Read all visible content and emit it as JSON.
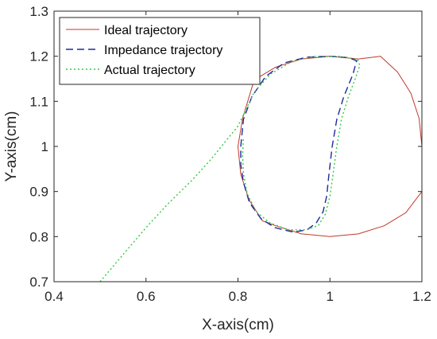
{
  "chart_data": {
    "type": "line",
    "xlabel": "X-axis(cm)",
    "ylabel": "Y-axis(cm)",
    "xlim": [
      0.4,
      1.2
    ],
    "ylim": [
      0.7,
      1.3
    ],
    "xticks": [
      "0.4",
      "0.6",
      "0.8",
      "1",
      "1.2"
    ],
    "yticks": [
      "0.7",
      "0.8",
      "0.9",
      "1",
      "1.1",
      "1.2",
      "1.3"
    ],
    "grid": false,
    "legend_position": "top-left",
    "series": [
      {
        "name": "Ideal trajectory",
        "style": "solid",
        "color": "#c0392b",
        "points": [
          [
            1.2,
            1.0
          ],
          [
            1.194,
            1.062
          ],
          [
            1.176,
            1.118
          ],
          [
            1.147,
            1.165
          ],
          [
            1.11,
            1.2
          ],
          [
            1.062,
            1.194
          ],
          [
            1.0,
            1.2
          ],
          [
            0.938,
            1.194
          ],
          [
            0.882,
            1.176
          ],
          [
            0.835,
            1.147
          ],
          [
            0.81,
            1.062
          ],
          [
            0.8,
            1.0
          ],
          [
            0.806,
            0.938
          ],
          [
            0.824,
            0.882
          ],
          [
            0.853,
            0.835
          ],
          [
            0.882,
            0.824
          ],
          [
            0.938,
            0.806
          ],
          [
            1.0,
            0.8
          ],
          [
            1.062,
            0.806
          ],
          [
            1.118,
            0.824
          ],
          [
            1.165,
            0.853
          ],
          [
            1.2,
            0.9
          ],
          [
            1.2,
            1.0
          ]
        ]
      },
      {
        "name": "Impedance trajectory",
        "style": "dashed",
        "color": "#1f2a9c",
        "points": [
          [
            0.806,
            1.0
          ],
          [
            0.812,
            1.06
          ],
          [
            0.83,
            1.11
          ],
          [
            0.86,
            1.155
          ],
          [
            0.9,
            1.185
          ],
          [
            0.95,
            1.198
          ],
          [
            1.0,
            1.2
          ],
          [
            1.04,
            1.197
          ],
          [
            1.058,
            1.19
          ],
          [
            1.05,
            1.16
          ],
          [
            1.03,
            1.11
          ],
          [
            1.015,
            1.06
          ],
          [
            1.005,
            1.0
          ],
          [
            0.998,
            0.94
          ],
          [
            0.993,
            0.89
          ],
          [
            0.985,
            0.855
          ],
          [
            0.97,
            0.83
          ],
          [
            0.95,
            0.815
          ],
          [
            0.92,
            0.81
          ],
          [
            0.88,
            0.82
          ],
          [
            0.85,
            0.84
          ],
          [
            0.825,
            0.875
          ],
          [
            0.812,
            0.92
          ],
          [
            0.806,
            0.96
          ],
          [
            0.806,
            1.0
          ]
        ]
      },
      {
        "name": "Actual trajectory",
        "style": "dotted",
        "color": "#2ecc40",
        "points": [
          [
            0.5,
            0.7
          ],
          [
            0.55,
            0.76
          ],
          [
            0.6,
            0.82
          ],
          [
            0.65,
            0.875
          ],
          [
            0.7,
            0.925
          ],
          [
            0.74,
            0.97
          ],
          [
            0.78,
            1.02
          ],
          [
            0.8,
            1.045
          ],
          [
            0.812,
            1.07
          ],
          [
            0.835,
            1.12
          ],
          [
            0.87,
            1.16
          ],
          [
            0.92,
            1.19
          ],
          [
            0.97,
            1.2
          ],
          [
            1.02,
            1.2
          ],
          [
            1.06,
            1.193
          ],
          [
            1.065,
            1.18
          ],
          [
            1.055,
            1.15
          ],
          [
            1.04,
            1.11
          ],
          [
            1.025,
            1.06
          ],
          [
            1.015,
            1.0
          ],
          [
            1.007,
            0.94
          ],
          [
            1.0,
            0.89
          ],
          [
            0.99,
            0.85
          ],
          [
            0.975,
            0.825
          ],
          [
            0.95,
            0.815
          ],
          [
            0.91,
            0.815
          ],
          [
            0.87,
            0.83
          ],
          [
            0.84,
            0.855
          ],
          [
            0.82,
            0.895
          ],
          [
            0.812,
            0.94
          ],
          [
            0.81,
            0.98
          ],
          [
            0.812,
            1.02
          ]
        ]
      }
    ]
  }
}
